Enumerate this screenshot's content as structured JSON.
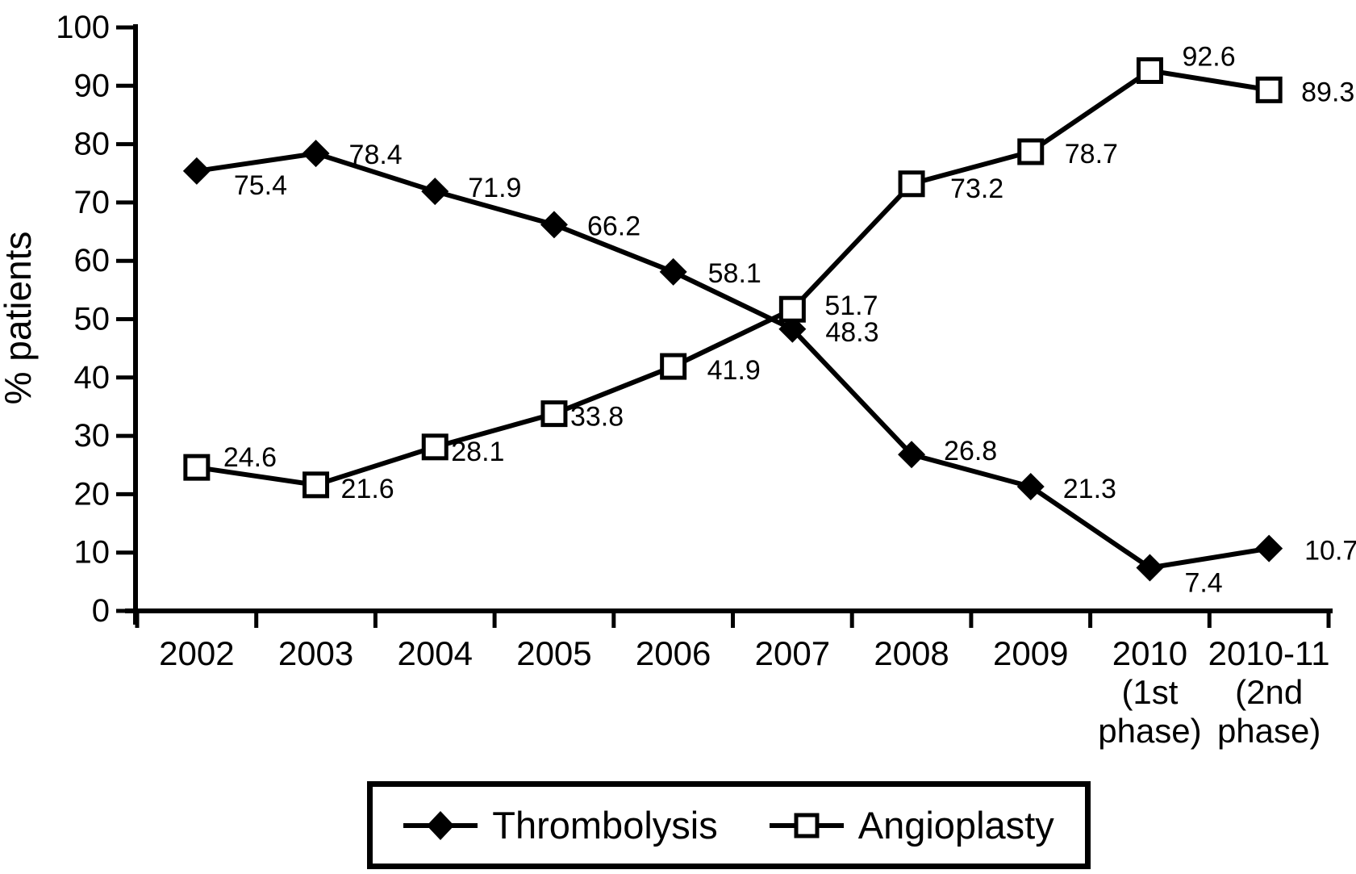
{
  "figure": {
    "background": "#ffffff",
    "ink_color": "#000000"
  },
  "chart_data": {
    "type": "line",
    "title": "",
    "xlabel": "",
    "ylabel": "% patients",
    "ylim": [
      0,
      100
    ],
    "yticks": [
      0,
      10,
      20,
      30,
      40,
      50,
      60,
      70,
      80,
      90,
      100
    ],
    "grid": false,
    "legend_position": "bottom",
    "categories": [
      [
        "2002"
      ],
      [
        "2003"
      ],
      [
        "2004"
      ],
      [
        "2005"
      ],
      [
        "2006"
      ],
      [
        "2007"
      ],
      [
        "2008"
      ],
      [
        "2009"
      ],
      [
        "2010",
        "(1st",
        "phase)"
      ],
      [
        "2010-11",
        "(2nd",
        "phase)"
      ]
    ],
    "series": [
      {
        "name": "Thrombolysis",
        "marker": "diamond-filled",
        "color": "#000000",
        "values": [
          75.4,
          78.4,
          71.9,
          66.2,
          58.1,
          48.3,
          26.8,
          21.3,
          7.4,
          10.7
        ],
        "label_offsets": [
          [
            46,
            18
          ],
          [
            41,
            2
          ],
          [
            41,
            -4
          ],
          [
            41,
            2
          ],
          [
            43,
            2
          ],
          [
            41,
            4
          ],
          [
            40,
            -4
          ],
          [
            40,
            3
          ],
          [
            43,
            19
          ],
          [
            44,
            3
          ]
        ]
      },
      {
        "name": "Angioplasty",
        "marker": "square-open",
        "color": "#000000",
        "values": [
          24.6,
          21.6,
          28.1,
          33.8,
          41.9,
          51.7,
          73.2,
          78.7,
          92.6,
          89.3
        ],
        "label_offsets": [
          [
            33,
            -12
          ],
          [
            31,
            5
          ],
          [
            20,
            6
          ],
          [
            20,
            4
          ],
          [
            42,
            5
          ],
          [
            40,
            -4
          ],
          [
            48,
            6
          ],
          [
            42,
            3
          ],
          [
            40,
            -17
          ],
          [
            40,
            3
          ]
        ]
      }
    ]
  }
}
